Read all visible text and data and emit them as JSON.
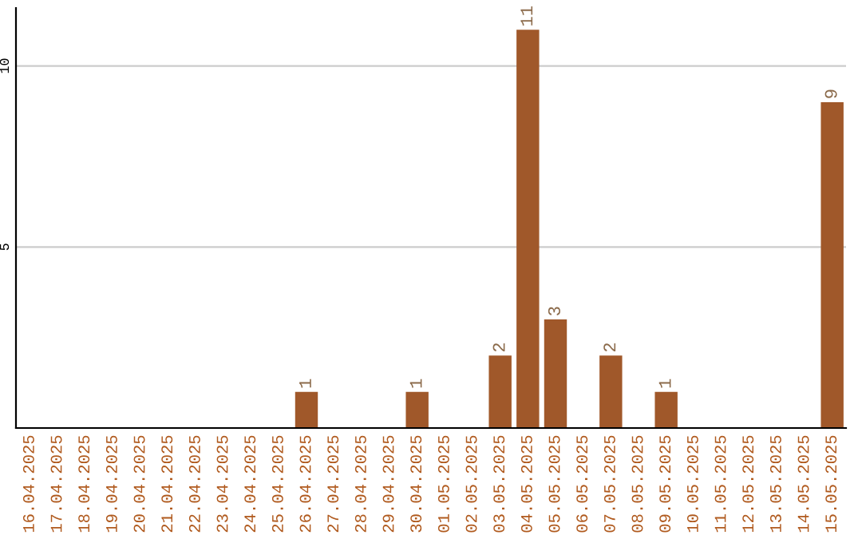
{
  "chart_data": {
    "type": "bar",
    "categories": [
      "16.04.2025",
      "17.04.2025",
      "18.04.2025",
      "19.04.2025",
      "20.04.2025",
      "21.04.2025",
      "22.04.2025",
      "23.04.2025",
      "24.04.2025",
      "25.04.2025",
      "26.04.2025",
      "27.04.2025",
      "28.04.2025",
      "29.04.2025",
      "30.04.2025",
      "01.05.2025",
      "02.05.2025",
      "03.05.2025",
      "04.05.2025",
      "05.05.2025",
      "06.05.2025",
      "07.05.2025",
      "08.05.2025",
      "09.05.2025",
      "10.05.2025",
      "11.05.2025",
      "12.05.2025",
      "13.05.2025",
      "14.05.2025",
      "15.05.2025"
    ],
    "values": [
      0,
      0,
      0,
      0,
      0,
      0,
      0,
      0,
      0,
      0,
      1,
      0,
      0,
      0,
      1,
      0,
      0,
      2,
      11,
      3,
      0,
      2,
      0,
      1,
      0,
      0,
      0,
      0,
      0,
      9
    ],
    "value_labels": [
      null,
      null,
      null,
      null,
      null,
      null,
      null,
      null,
      null,
      null,
      "1",
      null,
      null,
      null,
      "1",
      null,
      null,
      "2",
      "11",
      "3",
      null,
      "2",
      null,
      "1",
      null,
      null,
      null,
      null,
      null,
      "9"
    ],
    "color": "#a0582a",
    "ylim": [
      0,
      11.6
    ],
    "yticks": [
      5,
      10
    ],
    "grid": "y"
  }
}
